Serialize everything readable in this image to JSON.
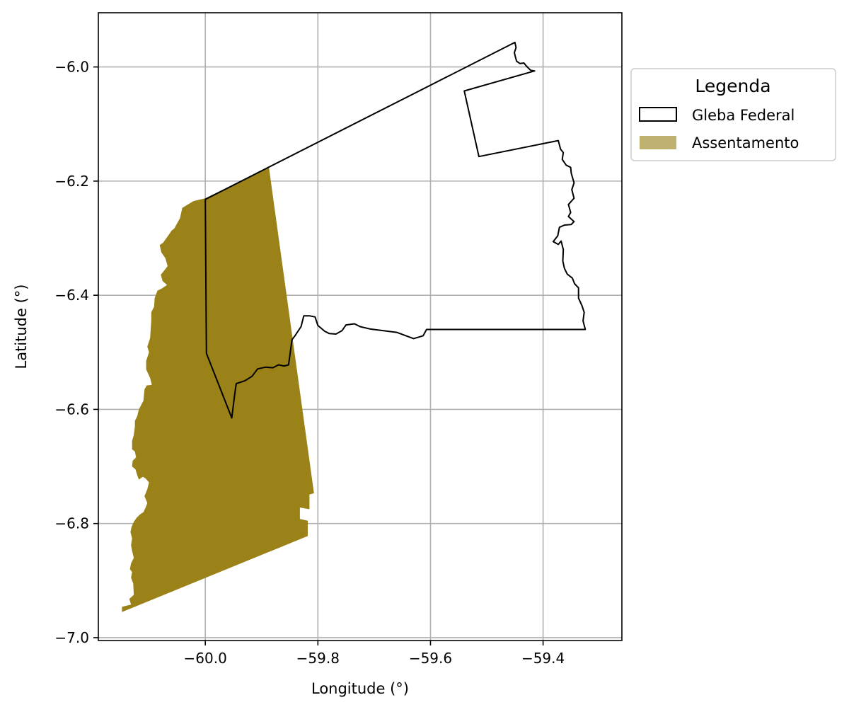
{
  "chart_data": {
    "type": "map",
    "xlabel": "Longitude (°)",
    "ylabel": "Latitude (°)",
    "xlim": [
      -60.19,
      -59.26
    ],
    "ylim": [
      -7.005,
      -5.905
    ],
    "grid": true,
    "x_ticks": [
      {
        "value": -60.0,
        "label": "−60.0"
      },
      {
        "value": -59.8,
        "label": "−59.8"
      },
      {
        "value": -59.6,
        "label": "−59.6"
      },
      {
        "value": -59.4,
        "label": "−59.4"
      }
    ],
    "y_ticks": [
      {
        "value": -6.0,
        "label": "−6.0"
      },
      {
        "value": -6.2,
        "label": "−6.2"
      },
      {
        "value": -6.4,
        "label": "−6.4"
      },
      {
        "value": -6.6,
        "label": "−6.6"
      },
      {
        "value": -6.8,
        "label": "−6.8"
      },
      {
        "value": -7.0,
        "label": "−7.0"
      }
    ],
    "legend": {
      "title": "Legenda",
      "placement": "outside-right-top",
      "entries": [
        {
          "key": "gleba",
          "label": "Gleba Federal"
        },
        {
          "key": "assentamento",
          "label": "Assentamento"
        }
      ]
    },
    "layers": {
      "assentamento": {
        "color": "#9a8218",
        "legend_color": "#bfb270",
        "coords": [
          [
            -59.887,
            -6.176
          ],
          [
            -59.807,
            -6.747
          ],
          [
            -59.815,
            -6.749
          ],
          [
            -59.815,
            -6.775
          ],
          [
            -59.832,
            -6.772
          ],
          [
            -59.832,
            -6.792
          ],
          [
            -59.818,
            -6.795
          ],
          [
            -59.818,
            -6.822
          ],
          [
            -60.148,
            -6.955
          ],
          [
            -60.148,
            -6.946
          ],
          [
            -60.132,
            -6.942
          ],
          [
            -60.135,
            -6.932
          ],
          [
            -60.127,
            -6.925
          ],
          [
            -60.128,
            -6.905
          ],
          [
            -60.132,
            -6.895
          ],
          [
            -60.13,
            -6.885
          ],
          [
            -60.134,
            -6.88
          ],
          [
            -60.132,
            -6.87
          ],
          [
            -60.127,
            -6.86
          ],
          [
            -60.13,
            -6.848
          ],
          [
            -60.132,
            -6.838
          ],
          [
            -60.13,
            -6.826
          ],
          [
            -60.133,
            -6.815
          ],
          [
            -60.131,
            -6.806
          ],
          [
            -60.127,
            -6.797
          ],
          [
            -60.122,
            -6.79
          ],
          [
            -60.116,
            -6.784
          ],
          [
            -60.11,
            -6.78
          ],
          [
            -60.106,
            -6.772
          ],
          [
            -60.103,
            -6.764
          ],
          [
            -60.108,
            -6.752
          ],
          [
            -60.103,
            -6.74
          ],
          [
            -60.1,
            -6.728
          ],
          [
            -60.106,
            -6.721
          ],
          [
            -60.111,
            -6.718
          ],
          [
            -60.118,
            -6.723
          ],
          [
            -60.121,
            -6.715
          ],
          [
            -60.124,
            -6.705
          ],
          [
            -60.13,
            -6.7
          ],
          [
            -60.129,
            -6.69
          ],
          [
            -60.123,
            -6.684
          ],
          [
            -60.125,
            -6.674
          ],
          [
            -60.13,
            -6.67
          ],
          [
            -60.13,
            -6.655
          ],
          [
            -60.127,
            -6.645
          ],
          [
            -60.125,
            -6.63
          ],
          [
            -60.125,
            -6.62
          ],
          [
            -60.121,
            -6.612
          ],
          [
            -60.118,
            -6.6
          ],
          [
            -60.11,
            -6.585
          ],
          [
            -60.108,
            -6.565
          ],
          [
            -60.104,
            -6.558
          ],
          [
            -60.095,
            -6.557
          ],
          [
            -60.098,
            -6.545
          ],
          [
            -60.105,
            -6.53
          ],
          [
            -60.105,
            -6.515
          ],
          [
            -60.1,
            -6.5
          ],
          [
            -60.103,
            -6.49
          ],
          [
            -60.098,
            -6.475
          ],
          [
            -60.097,
            -6.46
          ],
          [
            -60.096,
            -6.445
          ],
          [
            -60.096,
            -6.43
          ],
          [
            -60.091,
            -6.42
          ],
          [
            -60.09,
            -6.405
          ],
          [
            -60.085,
            -6.392
          ],
          [
            -60.077,
            -6.388
          ],
          [
            -60.068,
            -6.382
          ],
          [
            -60.076,
            -6.375
          ],
          [
            -60.079,
            -6.364
          ],
          [
            -60.074,
            -6.358
          ],
          [
            -60.067,
            -6.349
          ],
          [
            -60.071,
            -6.335
          ],
          [
            -60.078,
            -6.325
          ],
          [
            -60.081,
            -6.312
          ],
          [
            -60.075,
            -6.308
          ],
          [
            -60.065,
            -6.294
          ],
          [
            -60.06,
            -6.287
          ],
          [
            -60.055,
            -6.283
          ],
          [
            -60.045,
            -6.265
          ],
          [
            -60.041,
            -6.247
          ],
          [
            -60.021,
            -6.235
          ],
          [
            -60.0,
            -6.23
          ]
        ]
      },
      "gleba": {
        "color": "#000000",
        "coords": [
          [
            -60.0,
            -6.232
          ],
          [
            -59.45,
            -5.957
          ],
          [
            -59.448,
            -5.966
          ],
          [
            -59.451,
            -5.975
          ],
          [
            -59.449,
            -5.983
          ],
          [
            -59.447,
            -5.99
          ],
          [
            -59.441,
            -5.994
          ],
          [
            -59.434,
            -5.993
          ],
          [
            -59.43,
            -5.998
          ],
          [
            -59.422,
            -6.006
          ],
          [
            -59.415,
            -6.007
          ],
          [
            -59.54,
            -6.042
          ],
          [
            -59.514,
            -6.157
          ],
          [
            -59.373,
            -6.129
          ],
          [
            -59.369,
            -6.144
          ],
          [
            -59.364,
            -6.15
          ],
          [
            -59.366,
            -6.162
          ],
          [
            -59.359,
            -6.172
          ],
          [
            -59.351,
            -6.176
          ],
          [
            -59.35,
            -6.186
          ],
          [
            -59.348,
            -6.193
          ],
          [
            -59.345,
            -6.203
          ],
          [
            -59.349,
            -6.215
          ],
          [
            -59.345,
            -6.23
          ],
          [
            -59.355,
            -6.241
          ],
          [
            -59.351,
            -6.255
          ],
          [
            -59.355,
            -6.262
          ],
          [
            -59.345,
            -6.271
          ],
          [
            -59.35,
            -6.276
          ],
          [
            -59.362,
            -6.277
          ],
          [
            -59.371,
            -6.281
          ],
          [
            -59.374,
            -6.296
          ],
          [
            -59.382,
            -6.306
          ],
          [
            -59.373,
            -6.311
          ],
          [
            -59.368,
            -6.305
          ],
          [
            -59.364,
            -6.32
          ],
          [
            -59.365,
            -6.34
          ],
          [
            -59.362,
            -6.353
          ],
          [
            -59.357,
            -6.363
          ],
          [
            -59.348,
            -6.37
          ],
          [
            -59.344,
            -6.38
          ],
          [
            -59.337,
            -6.387
          ],
          [
            -59.337,
            -6.405
          ],
          [
            -59.331,
            -6.418
          ],
          [
            -59.327,
            -6.43
          ],
          [
            -59.329,
            -6.445
          ],
          [
            -59.325,
            -6.46
          ],
          [
            -59.607,
            -6.46
          ],
          [
            -59.613,
            -6.471
          ],
          [
            -59.63,
            -6.476
          ],
          [
            -59.66,
            -6.465
          ],
          [
            -59.708,
            -6.459
          ],
          [
            -59.725,
            -6.455
          ],
          [
            -59.735,
            -6.45
          ],
          [
            -59.75,
            -6.452
          ],
          [
            -59.757,
            -6.462
          ],
          [
            -59.768,
            -6.468
          ],
          [
            -59.78,
            -6.467
          ],
          [
            -59.788,
            -6.463
          ],
          [
            -59.8,
            -6.453
          ],
          [
            -59.805,
            -6.438
          ],
          [
            -59.815,
            -6.436
          ],
          [
            -59.825,
            -6.436
          ],
          [
            -59.83,
            -6.455
          ],
          [
            -59.84,
            -6.47
          ],
          [
            -59.846,
            -6.478
          ],
          [
            -59.852,
            -6.522
          ],
          [
            -59.86,
            -6.524
          ],
          [
            -59.87,
            -6.522
          ],
          [
            -59.88,
            -6.527
          ],
          [
            -59.893,
            -6.526
          ],
          [
            -59.907,
            -6.529
          ],
          [
            -59.917,
            -6.542
          ],
          [
            -59.93,
            -6.55
          ],
          [
            -59.945,
            -6.555
          ],
          [
            -59.948,
            -6.575
          ],
          [
            -59.953,
            -6.615
          ],
          [
            -59.998,
            -6.502
          ],
          [
            -59.999,
            -6.375
          ],
          [
            -60.0,
            -6.232
          ]
        ]
      }
    }
  }
}
